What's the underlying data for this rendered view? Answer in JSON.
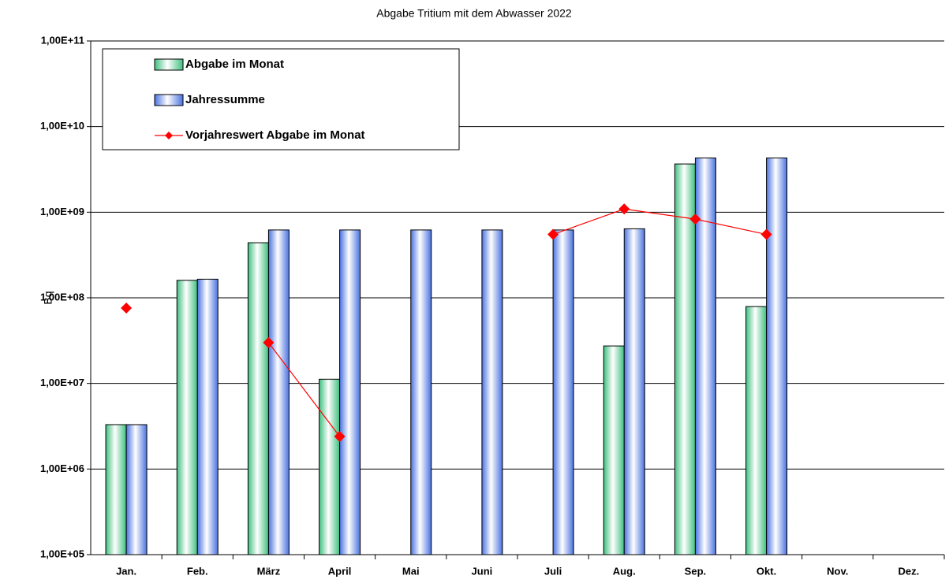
{
  "chart_data": {
    "type": "bar",
    "title": "Abgabe Tritium mit dem Abwasser 2022",
    "y_label": "Bq",
    "log_scale": true,
    "grid": true,
    "categories": [
      "Jan.",
      "Feb.",
      "März",
      "April",
      "Mai",
      "Juni",
      "Juli",
      "Aug.",
      "Sep.",
      "Okt.",
      "Nov.",
      "Dez."
    ],
    "series": [
      {
        "name": "Abgabe im Monat",
        "type": "bar",
        "color": "#3fbf7f",
        "values": [
          3300000,
          160000000,
          440000000,
          11200000,
          null,
          null,
          null,
          27400000,
          3660000000,
          79000000,
          null,
          null
        ]
      },
      {
        "name": "Jahressumme",
        "type": "bar",
        "color": "#4a72e0",
        "values": [
          3300000,
          165000000,
          620000000,
          620000000,
          620000000,
          620000000,
          620000000,
          640000000,
          4300000000,
          4300000000,
          null,
          null
        ]
      },
      {
        "name": "Vorjahreswert Abgabe im Monat",
        "type": "line",
        "color": "#ff0000",
        "values": [
          76000000,
          null,
          30000000,
          2400000,
          null,
          null,
          550000000,
          1090000000,
          830000000,
          550000000,
          null,
          null
        ]
      }
    ],
    "ylim": [
      100000,
      100000000000
    ],
    "yticks": [
      {
        "value": 100000,
        "label": "1,00E+05"
      },
      {
        "value": 1000000,
        "label": "1,00E+06"
      },
      {
        "value": 10000000,
        "label": "1,00E+07"
      },
      {
        "value": 100000000,
        "label": "1,00E+08"
      },
      {
        "value": 1000000000,
        "label": "1,00E+09"
      },
      {
        "value": 10000000000,
        "label": "1,00E+10"
      },
      {
        "value": 100000000000,
        "label": "1,00E+11"
      }
    ],
    "legend_position": "upper left"
  }
}
